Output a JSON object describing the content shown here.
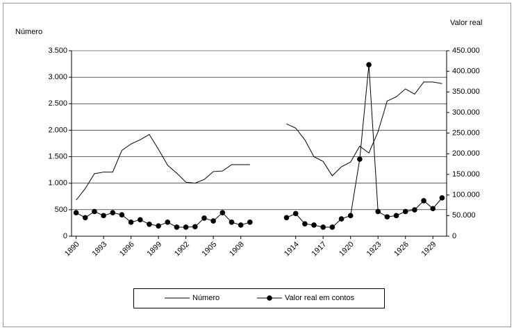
{
  "chart_data": {
    "type": "line",
    "left_axis_label": "Número",
    "right_axis_label": "Valor real",
    "x": [
      1890,
      1891,
      1892,
      1893,
      1894,
      1895,
      1896,
      1897,
      1898,
      1899,
      1900,
      1901,
      1902,
      1903,
      1904,
      1905,
      1906,
      1907,
      1908,
      1909,
      1910,
      1911,
      1912,
      1913,
      1914,
      1915,
      1916,
      1917,
      1918,
      1919,
      1920,
      1921,
      1922,
      1923,
      1924,
      1925,
      1926,
      1927,
      1928,
      1929,
      1930
    ],
    "xlim": [
      1889.5,
      1930.5
    ],
    "xticks": [
      1890,
      1893,
      1896,
      1899,
      1902,
      1905,
      1908,
      1914,
      1917,
      1920,
      1923,
      1926,
      1929
    ],
    "ylim": [
      0,
      3500
    ],
    "yticks": [
      0,
      500,
      {
        "value": 1000,
        "label": "1.000"
      },
      {
        "value": 1500,
        "label": "1.500"
      },
      {
        "value": 2000,
        "label": "2.000"
      },
      {
        "value": 2500,
        "label": "2.500"
      },
      {
        "value": 3000,
        "label": "3.000"
      },
      {
        "value": 3500,
        "label": "3.500"
      }
    ],
    "y2lim": [
      0,
      450000
    ],
    "y2ticks": [
      0,
      {
        "value": 50000,
        "label": "50.000"
      },
      {
        "value": 100000,
        "label": "100.000"
      },
      {
        "value": 150000,
        "label": "150.000"
      },
      {
        "value": 200000,
        "label": "200.000"
      },
      {
        "value": 250000,
        "label": "250.000"
      },
      {
        "value": 300000,
        "label": "300.000"
      },
      {
        "value": 350000,
        "label": "350.000"
      },
      {
        "value": 400000,
        "label": "400.000"
      },
      {
        "value": 450000,
        "label": "450.000"
      }
    ],
    "grid": true,
    "legend": "bottom",
    "series": [
      {
        "name": "Número",
        "color": "#000000",
        "marker": false,
        "values": [
          680,
          900,
          1180,
          1210,
          1210,
          1620,
          1740,
          1820,
          1920,
          1640,
          1340,
          1190,
          1020,
          1000,
          1070,
          1220,
          1230,
          1350,
          1350,
          1350,
          null,
          null,
          null,
          2120,
          2040,
          1820,
          1500,
          1410,
          1140,
          1310,
          1400,
          1700,
          1570,
          1970,
          2550,
          2630,
          2780,
          2680,
          2910,
          2910,
          2880
        ]
      },
      {
        "name": "Valor real em contos",
        "color": "#000000",
        "marker": true,
        "axis": "y2",
        "values": [
          57000,
          45000,
          60000,
          50000,
          57000,
          52000,
          34000,
          40000,
          29000,
          25000,
          34000,
          22000,
          22000,
          23000,
          44000,
          37000,
          57000,
          34000,
          27000,
          34000,
          null,
          null,
          null,
          45000,
          55000,
          30000,
          27000,
          22000,
          22000,
          42000,
          50000,
          187000,
          416000,
          60000,
          47000,
          50000,
          60000,
          64000,
          86000,
          67000,
          93000
        ]
      }
    ]
  }
}
